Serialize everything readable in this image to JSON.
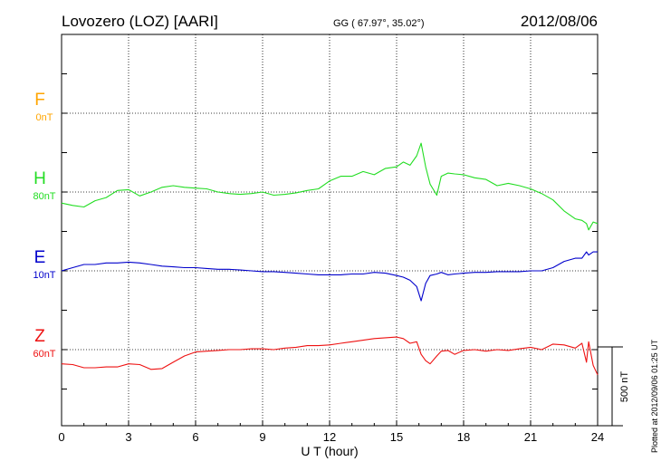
{
  "header": {
    "station": "Lovozero (LOZ)  [AARI]",
    "coordinates": "GG ( 67.97°,  35.02°)",
    "date": "2012/08/06"
  },
  "footer": {
    "plotted": "Plotted at 2012/09/06 01:25 UT"
  },
  "colors": {
    "F": "#ffa500",
    "H": "#22dd22",
    "E": "#0000cc",
    "Z": "#ee1111"
  },
  "chart_data": {
    "type": "line",
    "xlabel": "U T (hour)",
    "xlim": [
      0,
      24
    ],
    "xticks": [
      "0",
      "3",
      "6",
      "9",
      "12",
      "15",
      "18",
      "21",
      "24"
    ],
    "grid": "dotted",
    "scale_bar": {
      "label": "500 nT",
      "value": 500
    },
    "components": [
      {
        "letter": "F",
        "offset": "0nT",
        "baseline": 500
      },
      {
        "letter": "H",
        "offset": "80nT",
        "baseline": 0
      },
      {
        "letter": "E",
        "offset": "10nT",
        "baseline": -500
      },
      {
        "letter": "Z",
        "offset": "60nT",
        "baseline": -1000
      }
    ],
    "series": [
      {
        "component": "H",
        "x": [
          0,
          0.5,
          1,
          1.5,
          2,
          2.5,
          3,
          3.5,
          4,
          4.5,
          5,
          5.5,
          6,
          6.5,
          7,
          7.5,
          8,
          8.5,
          9,
          9.5,
          10,
          10.5,
          11,
          11.5,
          12,
          12.5,
          13,
          13.5,
          14,
          14.5,
          15,
          15.3,
          15.6,
          15.9,
          16.1,
          16.3,
          16.5,
          16.8,
          17,
          17.3,
          17.6,
          18,
          18.5,
          19,
          19.5,
          20,
          20.5,
          21,
          21.5,
          22,
          22.5,
          23,
          23.3,
          23.5,
          23.6,
          23.8,
          24
        ],
        "values": [
          -70,
          -85,
          -95,
          -55,
          -35,
          10,
          15,
          -25,
          0,
          30,
          40,
          30,
          25,
          20,
          0,
          -10,
          -15,
          -10,
          0,
          -20,
          -15,
          -5,
          10,
          20,
          70,
          100,
          100,
          130,
          110,
          150,
          160,
          190,
          170,
          230,
          310,
          160,
          50,
          -20,
          100,
          120,
          115,
          110,
          90,
          80,
          40,
          55,
          40,
          20,
          -10,
          -50,
          -120,
          -170,
          -180,
          -200,
          -240,
          -190,
          -200
        ]
      },
      {
        "component": "E",
        "x": [
          0,
          0.5,
          1,
          1.5,
          2,
          2.5,
          3,
          3.5,
          4,
          4.5,
          5,
          5.5,
          6,
          6.5,
          7,
          7.5,
          8,
          8.5,
          9,
          9.5,
          10,
          10.5,
          11,
          11.5,
          12,
          12.5,
          13,
          13.5,
          14,
          14.5,
          15,
          15.3,
          15.6,
          15.9,
          16.1,
          16.3,
          16.5,
          16.8,
          17,
          17.3,
          17.6,
          18,
          18.5,
          19,
          19.5,
          20,
          20.5,
          21,
          21.5,
          22,
          22.5,
          23,
          23.3,
          23.5,
          23.6,
          23.8,
          24
        ],
        "values": [
          -500,
          -480,
          -460,
          -460,
          -450,
          -450,
          -445,
          -450,
          -460,
          -470,
          -475,
          -480,
          -480,
          -485,
          -490,
          -490,
          -495,
          -500,
          -505,
          -505,
          -510,
          -515,
          -520,
          -525,
          -525,
          -525,
          -520,
          -520,
          -510,
          -515,
          -530,
          -540,
          -560,
          -600,
          -690,
          -580,
          -530,
          -520,
          -510,
          -525,
          -520,
          -515,
          -510,
          -510,
          -505,
          -505,
          -505,
          -500,
          -500,
          -480,
          -440,
          -420,
          -420,
          -380,
          -400,
          -380,
          -380
        ]
      },
      {
        "component": "Z",
        "x": [
          0,
          0.5,
          1,
          1.5,
          2,
          2.5,
          3,
          3.5,
          4,
          4.5,
          5,
          5.5,
          6,
          6.5,
          7,
          7.5,
          8,
          8.5,
          9,
          9.5,
          10,
          10.5,
          11,
          11.5,
          12,
          12.5,
          13,
          13.5,
          14,
          14.5,
          15,
          15.3,
          15.6,
          15.9,
          16.1,
          16.3,
          16.5,
          16.8,
          17,
          17.3,
          17.6,
          18,
          18.5,
          19,
          19.5,
          20,
          20.5,
          21,
          21.5,
          22,
          22.5,
          23,
          23.3,
          23.5,
          23.6,
          23.8,
          24
        ],
        "values": [
          -1090,
          -1095,
          -1115,
          -1115,
          -1110,
          -1110,
          -1090,
          -1095,
          -1125,
          -1120,
          -1080,
          -1040,
          -1015,
          -1010,
          -1005,
          -1000,
          -1000,
          -995,
          -995,
          -1000,
          -990,
          -985,
          -975,
          -975,
          -970,
          -960,
          -950,
          -940,
          -930,
          -925,
          -920,
          -930,
          -960,
          -950,
          -1030,
          -1070,
          -1090,
          -1040,
          -1010,
          -1005,
          -1030,
          -1005,
          -1000,
          -1010,
          -1000,
          -1005,
          -995,
          -985,
          -1000,
          -965,
          -970,
          -990,
          -960,
          -1080,
          -950,
          -1100,
          -1160
        ]
      }
    ]
  }
}
